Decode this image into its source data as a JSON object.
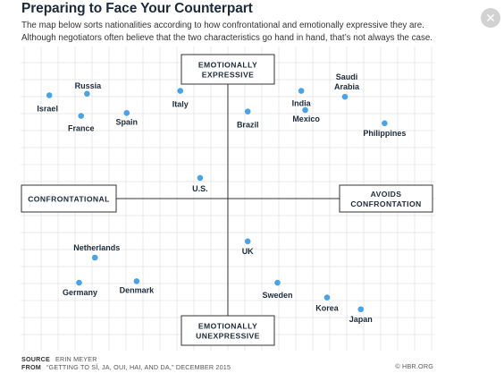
{
  "header": {
    "title": "Preparing to Face Your Counterpart",
    "subtitle_line1": "The map below sorts nationalities according to how confrontational and emotionally expressive they are.",
    "subtitle_line2": "Although negotiators often believe that the two characteristics go hand in hand, that’s not always the case."
  },
  "close": {
    "icon": "close-icon",
    "glyph": "✕"
  },
  "footer": {
    "source_label": "SOURCE",
    "source_value": "ERIN MEYER",
    "from_label": "FROM",
    "from_value": "“GETTING TO SÍ, JA, OUI, HAI, AND DA,” DECEMBER 2015",
    "credit": "© HBR.ORG"
  },
  "colors": {
    "dot": "#4ba3e6",
    "grid": "#e3e3e3",
    "axis": "#333333",
    "text": "#1d2a3a"
  },
  "chart_data": {
    "type": "scatter",
    "xlabel_left": "CONFRONTATIONAL",
    "xlabel_right": [
      "AVOIDS",
      "CONFRONTATION"
    ],
    "ylabel_top": [
      "EMOTIONALLY",
      "EXPRESSIVE"
    ],
    "ylabel_bottom": [
      "EMOTIONALLY",
      "UNEXPRESSIVE"
    ],
    "xlim": [
      -10,
      10
    ],
    "ylim": [
      -10,
      10
    ],
    "grid": true,
    "points": [
      {
        "label": [
          "Israel"
        ],
        "x": -9.0,
        "y": 7.0
      },
      {
        "label": [
          "Russia"
        ],
        "x": -7.1,
        "y": 7.1
      },
      {
        "label": [
          "France"
        ],
        "x": -7.4,
        "y": 5.6
      },
      {
        "label": [
          "Spain"
        ],
        "x": -5.1,
        "y": 5.8
      },
      {
        "label": [
          "Italy"
        ],
        "x": -2.4,
        "y": 7.3
      },
      {
        "label": [
          "Brazil"
        ],
        "x": 1.0,
        "y": 5.9
      },
      {
        "label": [
          "India"
        ],
        "x": 3.7,
        "y": 7.3
      },
      {
        "label": [
          "Mexico"
        ],
        "x": 3.9,
        "y": 6.0
      },
      {
        "label": [
          "Saudi",
          "Arabia"
        ],
        "x": 5.9,
        "y": 6.9
      },
      {
        "label": [
          "Philippines"
        ],
        "x": 7.9,
        "y": 5.1
      },
      {
        "label": [
          "U.S."
        ],
        "x": -1.4,
        "y": 1.4
      },
      {
        "label": [
          "UK"
        ],
        "x": 1.0,
        "y": -2.9
      },
      {
        "label": [
          "Netherlands"
        ],
        "x": -6.7,
        "y": -4.0
      },
      {
        "label": [
          "Germany"
        ],
        "x": -7.5,
        "y": -5.7
      },
      {
        "label": [
          "Denmark"
        ],
        "x": -4.6,
        "y": -5.6
      },
      {
        "label": [
          "Sweden"
        ],
        "x": 2.5,
        "y": -5.7
      },
      {
        "label": [
          "Korea"
        ],
        "x": 5.0,
        "y": -6.7
      },
      {
        "label": [
          "Japan"
        ],
        "x": 6.7,
        "y": -7.5
      }
    ]
  }
}
